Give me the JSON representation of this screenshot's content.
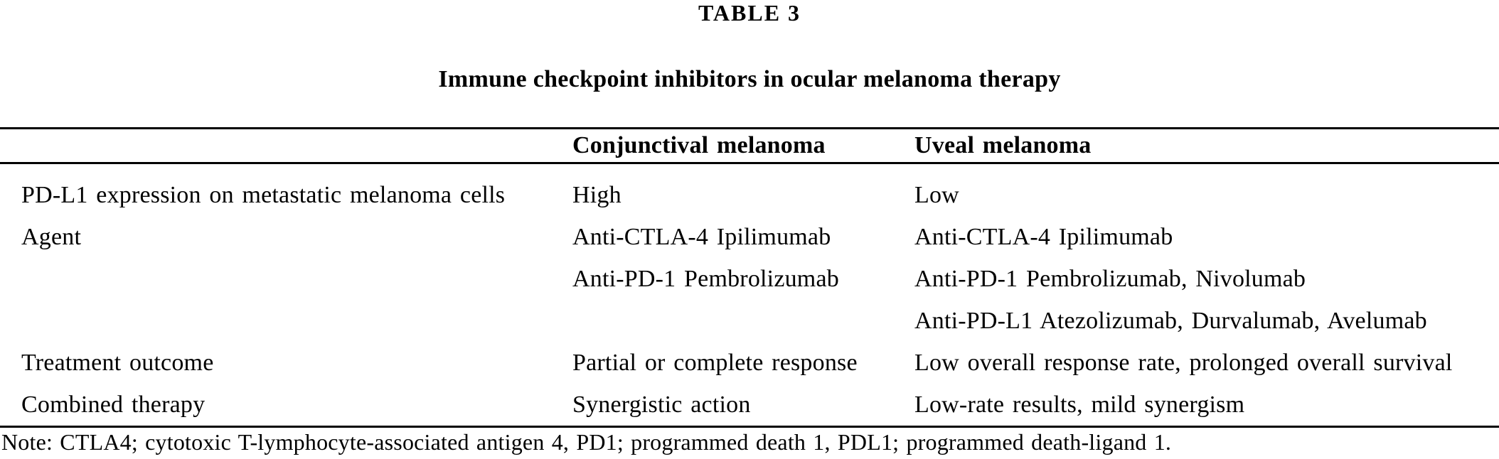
{
  "header": {
    "label": "TABLE 3",
    "caption": "Immune checkpoint inhibitors in ocular melanoma therapy"
  },
  "table": {
    "columns": [
      "",
      "Conjunctival melanoma",
      "Uveal melanoma"
    ],
    "rows": [
      {
        "label": "PD-L1 expression on metastatic melanoma cells",
        "conjunctival": "High",
        "uveal": "Low"
      },
      {
        "label": "Agent",
        "conjunctival": "Anti-CTLA-4 Ipilimumab",
        "uveal": "Anti-CTLA-4 Ipilimumab"
      },
      {
        "label": "",
        "conjunctival": "Anti-PD-1 Pembrolizumab",
        "uveal": "Anti-PD-1 Pembrolizumab, Nivolumab"
      },
      {
        "label": "",
        "conjunctival": "",
        "uveal": "Anti-PD-L1 Atezolizumab, Durvalumab, Avelumab"
      },
      {
        "label": "Treatment outcome",
        "conjunctival": "Partial or complete response",
        "uveal": "Low overall response rate, prolonged overall survival"
      },
      {
        "label": "Combined therapy",
        "conjunctival": "Synergistic action",
        "uveal": "Low-rate results, mild synergism"
      }
    ],
    "note": "Note: CTLA4; cytotoxic T-lymphocyte-associated antigen 4, PD1; programmed death 1, PDL1; programmed death-ligand 1."
  },
  "colors": {
    "background": "#ffffff",
    "text": "#000000",
    "rule": "#000000"
  }
}
